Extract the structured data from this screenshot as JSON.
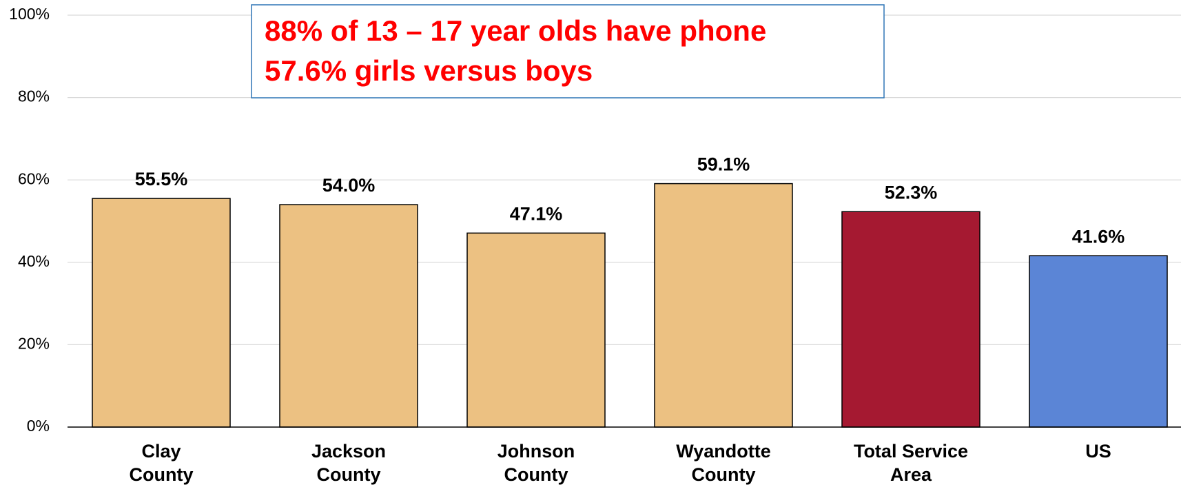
{
  "chart_data": {
    "type": "bar",
    "annotation": [
      "88% of 13 – 17 year olds have phone",
      "57.6% girls versus boys"
    ],
    "categories": [
      [
        "Clay",
        "County"
      ],
      [
        "Jackson",
        "County"
      ],
      [
        "Johnson",
        "County"
      ],
      [
        "Wyandotte",
        "County"
      ],
      [
        "Total Service",
        "Area"
      ],
      [
        "US"
      ]
    ],
    "values": [
      55.5,
      54.0,
      47.1,
      59.1,
      52.3,
      41.6
    ],
    "value_labels": [
      "55.5%",
      "54.0%",
      "47.1%",
      "59.1%",
      "52.3%",
      "41.6%"
    ],
    "colors": [
      "#ECC182",
      "#ECC182",
      "#ECC182",
      "#ECC182",
      "#A51931",
      "#5B85D6"
    ],
    "ylim": [
      0,
      100
    ],
    "yticks": [
      {
        "value": 0,
        "label": "0%"
      },
      {
        "value": 20,
        "label": "20%"
      },
      {
        "value": 40,
        "label": "40%"
      },
      {
        "value": 60,
        "label": "60%"
      },
      {
        "value": 80,
        "label": "80%"
      },
      {
        "value": 100,
        "label": "100%"
      }
    ],
    "grid": true
  }
}
